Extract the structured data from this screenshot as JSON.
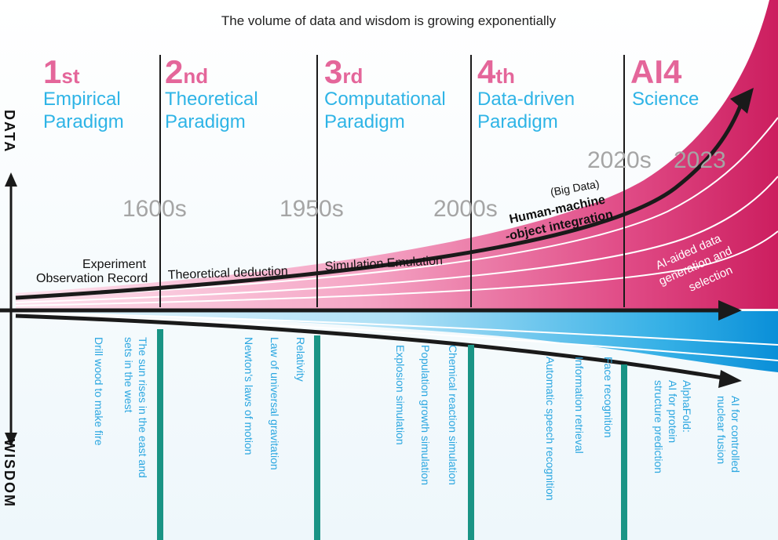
{
  "title": "The volume of data and wisdom is growing exponentially",
  "axis": {
    "up_label": "DATA",
    "down_label": "WISDOM"
  },
  "paradigms": [
    {
      "number": "1",
      "ordinal": "st",
      "line1": "Empirical",
      "line2": "Paradigm"
    },
    {
      "number": "2",
      "ordinal": "nd",
      "line1": "Theoretical",
      "line2": "Paradigm"
    },
    {
      "number": "3",
      "ordinal": "rd",
      "line1": "Computational",
      "line2": "Paradigm"
    },
    {
      "number": "4",
      "ordinal": "th",
      "line1": "Data-driven",
      "line2": "Paradigm"
    },
    {
      "number": "AI4",
      "ordinal": "",
      "line1": "Science",
      "line2": ""
    }
  ],
  "years": [
    "1600s",
    "1950s",
    "2000s",
    "2020s",
    "2023"
  ],
  "data_labels": {
    "experiment": "Experiment",
    "observation": "Observation Record",
    "theoretical": "Theoretical deduction",
    "simulation": "Simulation Emulation",
    "big_data": "(Big Data)",
    "hmo_line1": "Human-machine",
    "hmo_line2": "-object integration",
    "ai_line1": "AI-aided data",
    "ai_line2": "generation and",
    "ai_line3": "selection"
  },
  "wisdom_examples": [
    "Drill wood to make fire",
    "The sun rises in the east and",
    "sets in the west",
    "Newton's laws of motion",
    "Law of universal gravitation",
    "Relativity",
    "Explosion simulation",
    "Population growth simulation",
    "Chemical reaction simulation",
    "Automatic speech recognition",
    "Information retrieval",
    "Face recognition",
    "AlphaFold:",
    "AI for protein",
    "structure prediction",
    "AI for controlled",
    "nuclear fusion"
  ],
  "colors": {
    "magenta": "#d42a6a",
    "pink": "#e4669a",
    "cyan": "#2eb4e6",
    "teal": "#1a9485",
    "gray": "#a5a5a5"
  }
}
